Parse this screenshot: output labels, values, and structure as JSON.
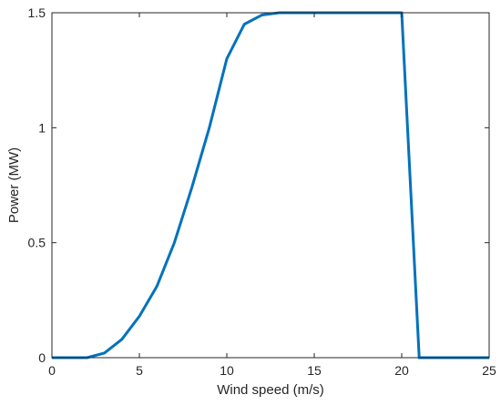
{
  "chart_data": {
    "type": "line",
    "xlabel": "Wind speed (m/s)",
    "ylabel": "Power (MW)",
    "xlim": [
      0,
      25
    ],
    "ylim": [
      0,
      1.5
    ],
    "xticks": [
      0,
      5,
      10,
      15,
      20,
      25
    ],
    "yticks": [
      0,
      0.5,
      1,
      1.5
    ],
    "xtick_labels": [
      "0",
      "5",
      "10",
      "15",
      "20",
      "25"
    ],
    "ytick_labels": [
      "0",
      "0.5",
      "1",
      "1.5"
    ],
    "grid": false,
    "series": [
      {
        "color": "#0072BD",
        "x": [
          0,
          1,
          2,
          3,
          4,
          5,
          6,
          7,
          8,
          9,
          10,
          11,
          12,
          13,
          14,
          15,
          16,
          17,
          18,
          19,
          20,
          21,
          22,
          23,
          24,
          25
        ],
        "y": [
          0,
          0,
          0,
          0.02,
          0.08,
          0.18,
          0.31,
          0.5,
          0.74,
          1.0,
          1.3,
          1.45,
          1.49,
          1.5,
          1.5,
          1.5,
          1.5,
          1.5,
          1.5,
          1.5,
          1.5,
          0,
          0,
          0,
          0,
          0
        ]
      }
    ]
  }
}
